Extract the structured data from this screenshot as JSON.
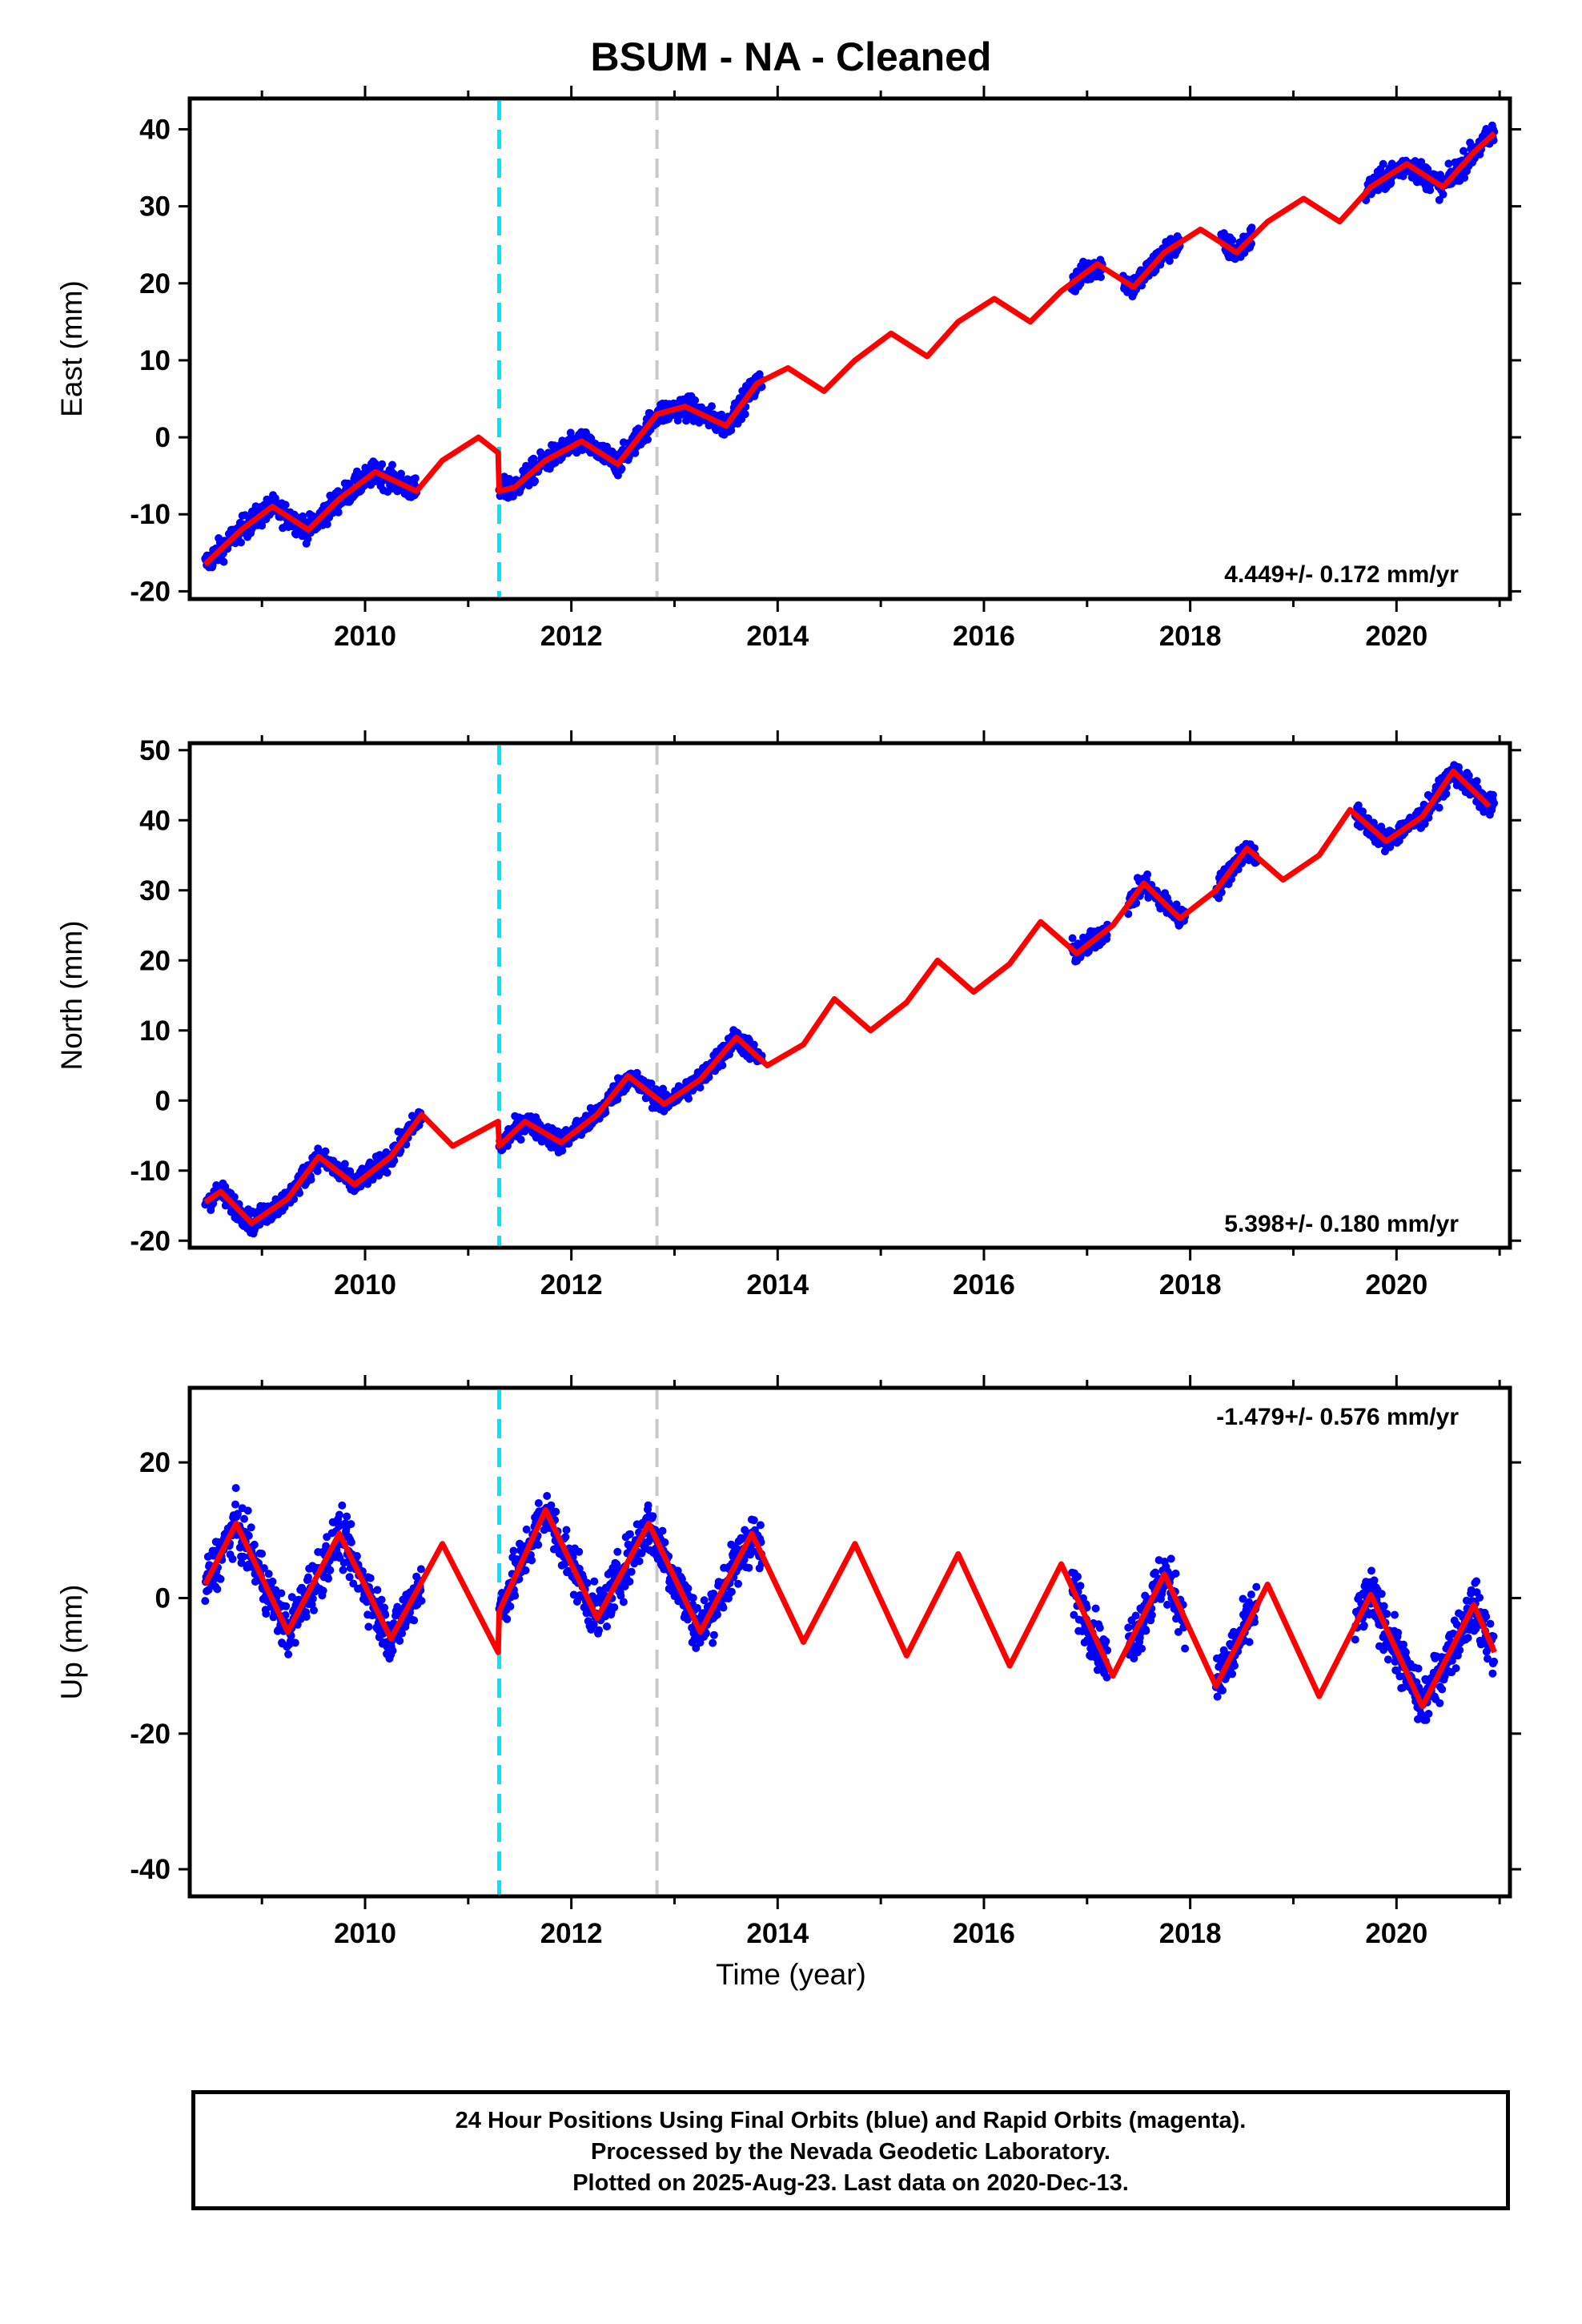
{
  "title": "BSUM  - NA - Cleaned",
  "xlabel": "Time (year)",
  "footer": {
    "line1": "24 Hour Positions Using Final Orbits (blue) and Rapid Orbits (magenta).",
    "line2": "Processed by the Nevada Geodetic Laboratory.",
    "line3": "Plotted on 2025-Aug-23. Last data on 2020-Dec-13."
  },
  "colors": {
    "data": "#0000ff",
    "model": "#ff0000",
    "equipment_change": "#00e5ff",
    "other_event": "#c8c8c8"
  },
  "chart_data": [
    {
      "type": "scatter",
      "ylabel": "East (mm)",
      "rate_label": "4.449+/- 0.172 mm/yr",
      "xlim": [
        2008.3,
        2021.1
      ],
      "ylim": [
        -21,
        44
      ],
      "xticks": [
        2010,
        2012,
        2014,
        2016,
        2018,
        2020
      ],
      "yticks": [
        -20,
        -10,
        0,
        10,
        20,
        30,
        40
      ],
      "events": {
        "equipment_change": 2011.3,
        "other_event": 2012.83
      },
      "data_segments": [
        [
          2008.45,
          2010.5
        ],
        [
          2011.3,
          2013.85
        ],
        [
          2016.85,
          2017.15
        ],
        [
          2017.35,
          2017.9
        ],
        [
          2018.3,
          2018.6
        ],
        [
          2019.7,
          2020.95
        ]
      ],
      "model": {
        "x": [
          2008.45,
          2008.8,
          2009.1,
          2009.45,
          2009.75,
          2010.1,
          2010.5,
          2010.75,
          2011.1,
          2011.29,
          2011.3,
          2011.45,
          2011.75,
          2012.1,
          2012.45,
          2012.83,
          2013.1,
          2013.5,
          2013.8,
          2014.1,
          2014.45,
          2014.75,
          2015.1,
          2015.45,
          2015.75,
          2016.1,
          2016.45,
          2016.75,
          2017.1,
          2017.45,
          2017.75,
          2018.1,
          2018.45,
          2018.75,
          2019.1,
          2019.45,
          2019.75,
          2020.1,
          2020.45,
          2020.75,
          2020.95
        ],
        "y": [
          -16.5,
          -12,
          -9,
          -12,
          -8,
          -4.5,
          -7,
          -3,
          0,
          -2,
          -7,
          -6.5,
          -3,
          -0.5,
          -3.5,
          3,
          4,
          1.5,
          7,
          9,
          6,
          10,
          13.5,
          10.5,
          15,
          18,
          15,
          19,
          22.5,
          19.5,
          24,
          27,
          24,
          28,
          31,
          28,
          32.5,
          35.5,
          32.5,
          37,
          39.5
        ]
      }
    },
    {
      "type": "scatter",
      "ylabel": "North (mm)",
      "rate_label": "5.398+/- 0.180 mm/yr",
      "xlim": [
        2008.3,
        2021.1
      ],
      "ylim": [
        -21,
        51
      ],
      "xticks": [
        2010,
        2012,
        2014,
        2016,
        2018,
        2020
      ],
      "yticks": [
        -20,
        -10,
        0,
        10,
        20,
        30,
        40,
        50
      ],
      "events": {
        "equipment_change": 2011.3,
        "other_event": 2012.83
      },
      "data_segments": [
        [
          2008.45,
          2010.55
        ],
        [
          2011.3,
          2013.85
        ],
        [
          2016.85,
          2017.2
        ],
        [
          2017.4,
          2017.95
        ],
        [
          2018.25,
          2018.65
        ],
        [
          2019.6,
          2020.95
        ]
      ],
      "model": {
        "x": [
          2008.45,
          2008.6,
          2008.9,
          2009.25,
          2009.55,
          2009.9,
          2010.25,
          2010.55,
          2010.85,
          2011.29,
          2011.3,
          2011.55,
          2011.9,
          2012.25,
          2012.55,
          2012.9,
          2013.25,
          2013.6,
          2013.9,
          2014.25,
          2014.55,
          2014.9,
          2015.25,
          2015.55,
          2015.9,
          2016.25,
          2016.55,
          2016.9,
          2017.25,
          2017.55,
          2017.9,
          2018.25,
          2018.55,
          2018.9,
          2019.25,
          2019.55,
          2019.9,
          2020.25,
          2020.55,
          2020.9
        ],
        "y": [
          -14.5,
          -13,
          -17.5,
          -14,
          -8,
          -12,
          -8,
          -2,
          -6.5,
          -3,
          -6.5,
          -3,
          -6,
          -2,
          3.5,
          -0.5,
          3,
          9,
          5,
          8,
          14.5,
          10,
          14,
          20,
          15.5,
          19.5,
          25.5,
          21,
          25,
          31,
          26,
          30,
          36,
          31.5,
          35,
          41.5,
          37,
          40.5,
          47,
          42
        ]
      }
    },
    {
      "type": "scatter",
      "ylabel": "Up (mm)",
      "rate_label": "-1.479+/- 0.576 mm/yr",
      "xlim": [
        2008.3,
        2021.1
      ],
      "ylim": [
        -44,
        31
      ],
      "xticks": [
        2010,
        2012,
        2014,
        2016,
        2018,
        2020
      ],
      "yticks": [
        -40,
        -20,
        0,
        20
      ],
      "events": {
        "equipment_change": 2011.3,
        "other_event": 2012.83
      },
      "data_segments": [
        [
          2008.45,
          2010.55
        ],
        [
          2011.3,
          2013.85
        ],
        [
          2016.85,
          2017.2
        ],
        [
          2017.4,
          2017.95
        ],
        [
          2018.25,
          2018.65
        ],
        [
          2019.6,
          2020.95
        ]
      ],
      "model": {
        "x": [
          2008.45,
          2008.75,
          2009.25,
          2009.75,
          2010.25,
          2010.75,
          2011.29,
          2011.3,
          2011.75,
          2012.25,
          2012.75,
          2013.25,
          2013.75,
          2014.25,
          2014.75,
          2015.25,
          2015.75,
          2016.25,
          2016.75,
          2017.25,
          2017.75,
          2018.25,
          2018.75,
          2019.25,
          2019.75,
          2020.25,
          2020.75,
          2020.95
        ],
        "y": [
          2,
          11,
          -5,
          9.5,
          -6,
          8,
          -8,
          -2,
          13,
          -3,
          11,
          -5,
          9.5,
          -6.5,
          8,
          -8.5,
          6.5,
          -10,
          5,
          -11.5,
          3.5,
          -13,
          2,
          -14.5,
          0.5,
          -16,
          -1,
          -8
        ]
      }
    }
  ]
}
